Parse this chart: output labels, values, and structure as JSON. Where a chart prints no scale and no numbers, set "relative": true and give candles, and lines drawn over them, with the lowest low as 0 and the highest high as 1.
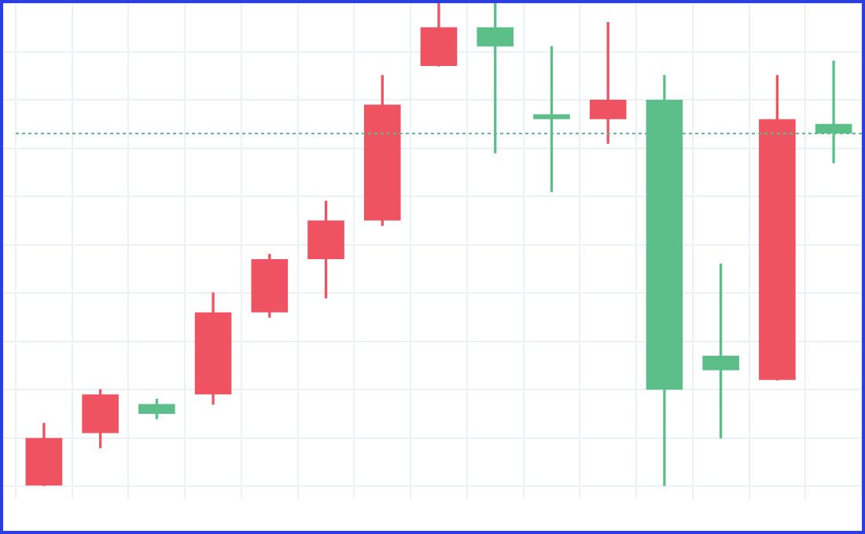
{
  "chart_data": {
    "type": "candlestick",
    "relative": true,
    "grid": true,
    "categories": [
      null,
      null,
      null,
      null,
      null,
      null,
      null,
      null,
      null,
      null,
      null,
      null,
      null,
      null,
      null
    ],
    "ohlc": [
      [
        0,
        0.13,
        0,
        0.1
      ],
      [
        0.11,
        0.2,
        0.08,
        0.19
      ],
      [
        0.17,
        0.18,
        0.14,
        0.15
      ],
      [
        0.19,
        0.4,
        0.17,
        0.36
      ],
      [
        0.36,
        0.48,
        0.35,
        0.47
      ],
      [
        0.47,
        0.59,
        0.39,
        0.55
      ],
      [
        0.55,
        0.85,
        0.54,
        0.79
      ],
      [
        0.87,
        1.0,
        0.87,
        0.95
      ],
      [
        0.95,
        1.0,
        0.69,
        0.91
      ],
      [
        0.77,
        0.91,
        0.61,
        0.76
      ],
      [
        0.76,
        0.96,
        0.71,
        0.8
      ],
      [
        0.8,
        0.85,
        0,
        0.2
      ],
      [
        0.27,
        0.46,
        0.1,
        0.24
      ],
      [
        0.22,
        0.85,
        0.22,
        0.76
      ],
      [
        0.75,
        0.88,
        0.67,
        0.73
      ]
    ],
    "colors": [
      "#ef5361",
      "#ef5361",
      "#5cbf8a",
      "#ef5361",
      "#ef5361",
      "#ef5361",
      "#ef5361",
      "#ef5361",
      "#5cbf8a",
      "#5cbf8a",
      "#ef5361",
      "#5cbf8a",
      "#5cbf8a",
      "#ef5361",
      "#5cbf8a"
    ],
    "ref_lines": [
      {
        "axis": "y",
        "value": 0.73,
        "color": "#5cbf8a",
        "line_style": "dotted"
      }
    ]
  }
}
